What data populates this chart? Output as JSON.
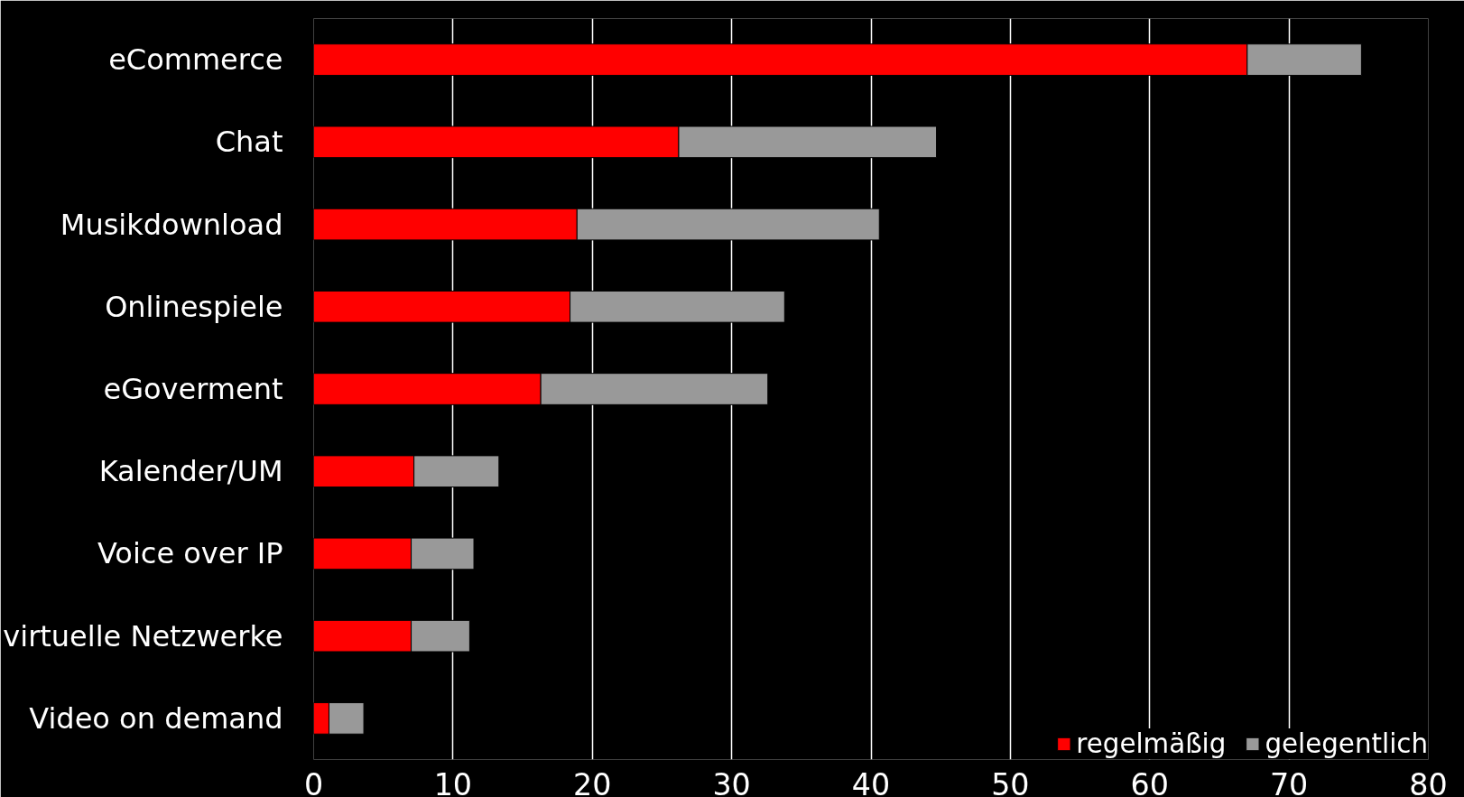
{
  "chart_data": {
    "type": "bar",
    "orientation": "horizontal",
    "stacked": true,
    "categories": [
      "eCommerce",
      "Chat",
      "Musikdownload",
      "Onlinespiele",
      "eGoverment",
      "Kalender/UM",
      "Voice over IP",
      "virtuelle Netzwerke",
      "Video on demand"
    ],
    "series": [
      {
        "name": "regelmäßig",
        "color": "#ff0000",
        "values": [
          67.0,
          26.2,
          18.9,
          18.4,
          16.3,
          7.2,
          7.0,
          7.0,
          1.1
        ]
      },
      {
        "name": "gelegentlich",
        "color": "#999999",
        "values": [
          8.2,
          18.5,
          21.7,
          15.4,
          16.3,
          6.1,
          4.5,
          4.2,
          2.5
        ]
      }
    ],
    "xlim": [
      0,
      80
    ],
    "xticks": [
      0,
      10,
      20,
      30,
      40,
      50,
      60,
      70,
      80
    ],
    "grid": "x",
    "legend": "bottom right"
  }
}
